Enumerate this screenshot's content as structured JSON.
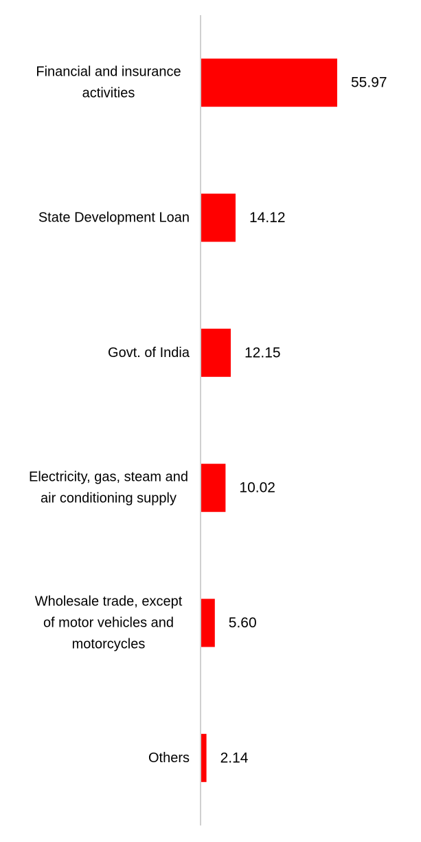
{
  "chart_data": {
    "type": "bar",
    "orientation": "horizontal",
    "categories": [
      "Financial and insurance activities",
      "State Development Loan",
      "Govt. of India",
      "Electricity, gas, steam and air conditioning supply",
      "Wholesale trade, except of motor vehicles and motorcycles",
      "Others"
    ],
    "category_lines": [
      [
        "Financial and insurance",
        "activities"
      ],
      [
        "State Development Loan"
      ],
      [
        "Govt. of India"
      ],
      [
        "Electricity, gas, steam and",
        "air conditioning supply"
      ],
      [
        "Wholesale trade, except",
        "of motor vehicles and",
        "motorcycles"
      ],
      [
        "Others"
      ]
    ],
    "values": [
      55.97,
      14.12,
      12.15,
      10.02,
      5.6,
      2.14
    ],
    "value_labels": [
      "55.97",
      "14.12",
      "12.15",
      "10.02",
      "5.60",
      "2.14"
    ],
    "title": "",
    "xlabel": "",
    "ylabel": "",
    "xlim": [
      0,
      60
    ],
    "grid": false,
    "legend": "none",
    "bar_color": "#ff0000",
    "axis_color": "#d0d0d0"
  }
}
